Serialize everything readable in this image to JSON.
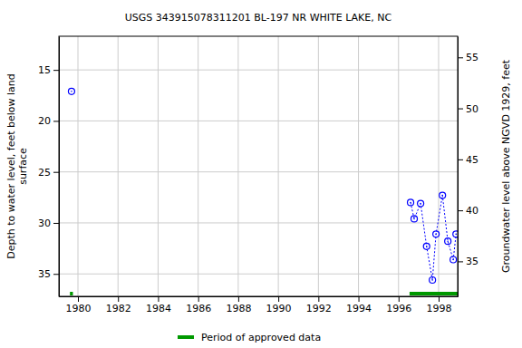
{
  "chart_data": {
    "type": "line",
    "title": "USGS 343915078311201 BL-197 NR WHITE LAKE, NC",
    "y_label": [
      "Depth to water level, feet below land",
      "surface"
    ],
    "y2_label": "Groundwater level above NGVD 1929, feet",
    "x": [
      1979.68,
      null,
      1996.6,
      1996.78,
      1997.1,
      1997.4,
      1997.69,
      1997.87,
      1998.19,
      1998.46,
      1998.73,
      1998.87
    ],
    "series": [
      {
        "color": "#0000ff",
        "marker": "circle",
        "line_style": "dotted",
        "values": [
          17.1,
          null,
          28.0,
          29.6,
          28.1,
          32.3,
          35.6,
          31.1,
          27.3,
          31.8,
          33.6,
          31.1
        ]
      }
    ],
    "approved_periods": {
      "name": "Period of approved data",
      "color": "#009900",
      "ranges": [
        [
          1979.6,
          1979.75
        ],
        [
          1996.55,
          1998.95
        ]
      ]
    },
    "xlim": [
      1979.05,
      1998.95
    ],
    "xticks": [
      1980,
      1982,
      1984,
      1986,
      1988,
      1990,
      1992,
      1994,
      1996,
      1998
    ],
    "ylim": [
      37.2,
      11.7
    ],
    "yticks": [
      15,
      20,
      25,
      30,
      35
    ],
    "y2lim": [
      31.57,
      57.07
    ],
    "y2ticks": [
      35,
      40,
      45,
      50,
      55
    ],
    "grid": true
  }
}
